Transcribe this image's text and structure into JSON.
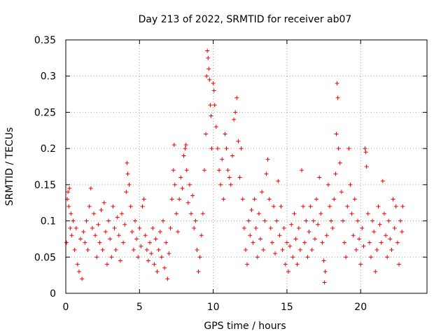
{
  "chart_data": {
    "type": "scatter",
    "title": "Day 213 of 2022, SRMTID for receiver ab07",
    "xlabel": "GPS time / hours",
    "ylabel": "SRMTID / TECUs",
    "xlim": [
      0,
      24.5
    ],
    "ylim": [
      0,
      0.35
    ],
    "xticks": [
      0,
      5,
      10,
      15,
      20
    ],
    "yticks": [
      0,
      0.05,
      0.1,
      0.15,
      0.2,
      0.25,
      0.3,
      0.35
    ],
    "xtick_labels": [
      "0",
      "5",
      "10",
      "15",
      "20"
    ],
    "ytick_labels": [
      "0",
      "0.05",
      "0.1",
      "0.15",
      "0.2",
      "0.25",
      "0.3",
      "0.35"
    ],
    "grid": true,
    "marker": "+",
    "color": "#ee0000",
    "series": [
      {
        "name": "SRMTID",
        "points": [
          [
            0.05,
            0.07
          ],
          [
            0.1,
            0.13
          ],
          [
            0.15,
            0.14
          ],
          [
            0.2,
            0.12
          ],
          [
            0.25,
            0.145
          ],
          [
            0.3,
            0.09
          ],
          [
            0.35,
            0.11
          ],
          [
            0.4,
            0.08
          ],
          [
            0.5,
            0.1
          ],
          [
            0.6,
            0.06
          ],
          [
            0.7,
            0.09
          ],
          [
            0.8,
            0.04
          ],
          [
            0.9,
            0.03
          ],
          [
            1.0,
            0.075
          ],
          [
            1.1,
            0.02
          ],
          [
            1.2,
            0.085
          ],
          [
            1.3,
            0.07
          ],
          [
            1.4,
            0.1
          ],
          [
            1.5,
            0.06
          ],
          [
            1.6,
            0.12
          ],
          [
            1.7,
            0.145
          ],
          [
            1.8,
            0.09
          ],
          [
            1.9,
            0.11
          ],
          [
            2.0,
            0.08
          ],
          [
            2.1,
            0.05
          ],
          [
            2.2,
            0.095
          ],
          [
            2.3,
            0.07
          ],
          [
            2.4,
            0.115
          ],
          [
            2.5,
            0.06
          ],
          [
            2.6,
            0.125
          ],
          [
            2.7,
            0.085
          ],
          [
            2.8,
            0.04
          ],
          [
            2.9,
            0.1
          ],
          [
            3.0,
            0.075
          ],
          [
            3.1,
            0.05
          ],
          [
            3.2,
            0.12
          ],
          [
            3.3,
            0.09
          ],
          [
            3.4,
            0.06
          ],
          [
            3.5,
            0.105
          ],
          [
            3.6,
            0.08
          ],
          [
            3.7,
            0.045
          ],
          [
            3.8,
            0.11
          ],
          [
            3.9,
            0.07
          ],
          [
            4.0,
            0.095
          ],
          [
            4.1,
            0.14
          ],
          [
            4.15,
            0.18
          ],
          [
            4.2,
            0.165
          ],
          [
            4.3,
            0.15
          ],
          [
            4.4,
            0.12
          ],
          [
            4.5,
            0.085
          ],
          [
            4.6,
            0.06
          ],
          [
            4.7,
            0.1
          ],
          [
            4.8,
            0.075
          ],
          [
            4.9,
            0.05
          ],
          [
            5.0,
            0.09
          ],
          [
            5.1,
            0.065
          ],
          [
            5.2,
            0.12
          ],
          [
            5.3,
            0.13
          ],
          [
            5.4,
            0.08
          ],
          [
            5.5,
            0.06
          ],
          [
            5.6,
            0.045
          ],
          [
            5.7,
            0.07
          ],
          [
            5.8,
            0.055
          ],
          [
            5.9,
            0.09
          ],
          [
            6.0,
            0.04
          ],
          [
            6.1,
            0.075
          ],
          [
            6.2,
            0.03
          ],
          [
            6.3,
            0.06
          ],
          [
            6.4,
            0.085
          ],
          [
            6.5,
            0.05
          ],
          [
            6.6,
            0.1
          ],
          [
            6.7,
            0.035
          ],
          [
            6.8,
            0.07
          ],
          [
            6.9,
            0.02
          ],
          [
            7.0,
            0.055
          ],
          [
            7.1,
            0.09
          ],
          [
            7.2,
            0.13
          ],
          [
            7.3,
            0.17
          ],
          [
            7.35,
            0.205
          ],
          [
            7.4,
            0.15
          ],
          [
            7.5,
            0.11
          ],
          [
            7.6,
            0.085
          ],
          [
            7.7,
            0.13
          ],
          [
            7.8,
            0.16
          ],
          [
            7.9,
            0.145
          ],
          [
            8.0,
            0.19
          ],
          [
            8.1,
            0.2
          ],
          [
            8.15,
            0.205
          ],
          [
            8.2,
            0.17
          ],
          [
            8.3,
            0.125
          ],
          [
            8.4,
            0.15
          ],
          [
            8.5,
            0.11
          ],
          [
            8.6,
            0.135
          ],
          [
            8.7,
            0.09
          ],
          [
            8.8,
            0.1
          ],
          [
            8.9,
            0.06
          ],
          [
            9.0,
            0.03
          ],
          [
            9.1,
            0.05
          ],
          [
            9.2,
            0.08
          ],
          [
            9.3,
            0.11
          ],
          [
            9.4,
            0.17
          ],
          [
            9.5,
            0.22
          ],
          [
            9.55,
            0.3
          ],
          [
            9.6,
            0.335
          ],
          [
            9.65,
            0.325
          ],
          [
            9.7,
            0.31
          ],
          [
            9.75,
            0.295
          ],
          [
            9.8,
            0.26
          ],
          [
            9.85,
            0.245
          ],
          [
            9.9,
            0.2
          ],
          [
            10.0,
            0.29
          ],
          [
            10.05,
            0.28
          ],
          [
            10.1,
            0.26
          ],
          [
            10.2,
            0.23
          ],
          [
            10.3,
            0.2
          ],
          [
            10.4,
            0.17
          ],
          [
            10.5,
            0.15
          ],
          [
            10.6,
            0.185
          ],
          [
            10.7,
            0.13
          ],
          [
            10.8,
            0.22
          ],
          [
            10.9,
            0.2
          ],
          [
            11.0,
            0.17
          ],
          [
            11.1,
            0.16
          ],
          [
            11.2,
            0.15
          ],
          [
            11.3,
            0.19
          ],
          [
            11.4,
            0.24
          ],
          [
            11.5,
            0.25
          ],
          [
            11.6,
            0.27
          ],
          [
            11.7,
            0.21
          ],
          [
            11.8,
            0.16
          ],
          [
            11.9,
            0.2
          ],
          [
            12.0,
            0.13
          ],
          [
            12.1,
            0.09
          ],
          [
            12.2,
            0.06
          ],
          [
            12.3,
            0.04
          ],
          [
            12.4,
            0.1
          ],
          [
            12.5,
            0.08
          ],
          [
            12.6,
            0.115
          ],
          [
            12.7,
            0.07
          ],
          [
            12.8,
            0.13
          ],
          [
            12.9,
            0.09
          ],
          [
            13.0,
            0.05
          ],
          [
            13.1,
            0.11
          ],
          [
            13.2,
            0.075
          ],
          [
            13.3,
            0.14
          ],
          [
            13.4,
            0.06
          ],
          [
            13.5,
            0.1
          ],
          [
            13.6,
            0.165
          ],
          [
            13.7,
            0.185
          ],
          [
            13.8,
            0.13
          ],
          [
            13.9,
            0.09
          ],
          [
            14.0,
            0.07
          ],
          [
            14.1,
            0.12
          ],
          [
            14.2,
            0.055
          ],
          [
            14.3,
            0.1
          ],
          [
            14.4,
            0.155
          ],
          [
            14.5,
            0.08
          ],
          [
            14.6,
            0.12
          ],
          [
            14.7,
            0.06
          ],
          [
            14.8,
            0.09
          ],
          [
            14.9,
            0.04
          ],
          [
            15.0,
            0.07
          ],
          [
            15.1,
            0.03
          ],
          [
            15.2,
            0.065
          ],
          [
            15.3,
            0.095
          ],
          [
            15.4,
            0.05
          ],
          [
            15.5,
            0.11
          ],
          [
            15.6,
            0.075
          ],
          [
            15.7,
            0.04
          ],
          [
            15.8,
            0.09
          ],
          [
            15.9,
            0.06
          ],
          [
            16.0,
            0.17
          ],
          [
            16.1,
            0.12
          ],
          [
            16.2,
            0.07
          ],
          [
            16.3,
            0.1
          ],
          [
            16.4,
            0.05
          ],
          [
            16.5,
            0.085
          ],
          [
            16.6,
            0.12
          ],
          [
            16.7,
            0.06
          ],
          [
            16.8,
            0.1
          ],
          [
            16.9,
            0.075
          ],
          [
            17.0,
            0.13
          ],
          [
            17.1,
            0.095
          ],
          [
            17.2,
            0.16
          ],
          [
            17.3,
            0.11
          ],
          [
            17.4,
            0.07
          ],
          [
            17.5,
            0.045
          ],
          [
            17.55,
            0.015
          ],
          [
            17.6,
            0.03
          ],
          [
            17.7,
            0.08
          ],
          [
            17.8,
            0.15
          ],
          [
            17.9,
            0.12
          ],
          [
            18.0,
            0.1
          ],
          [
            18.1,
            0.09
          ],
          [
            18.2,
            0.13
          ],
          [
            18.3,
            0.165
          ],
          [
            18.35,
            0.22
          ],
          [
            18.4,
            0.29
          ],
          [
            18.45,
            0.27
          ],
          [
            18.5,
            0.2
          ],
          [
            18.6,
            0.18
          ],
          [
            18.7,
            0.14
          ],
          [
            18.8,
            0.1
          ],
          [
            18.9,
            0.07
          ],
          [
            19.0,
            0.05
          ],
          [
            19.1,
            0.12
          ],
          [
            19.2,
            0.2
          ],
          [
            19.3,
            0.15
          ],
          [
            19.4,
            0.11
          ],
          [
            19.5,
            0.08
          ],
          [
            19.6,
            0.13
          ],
          [
            19.7,
            0.06
          ],
          [
            19.8,
            0.1
          ],
          [
            19.9,
            0.075
          ],
          [
            20.0,
            0.04
          ],
          [
            20.1,
            0.09
          ],
          [
            20.2,
            0.065
          ],
          [
            20.3,
            0.2
          ],
          [
            20.35,
            0.195
          ],
          [
            20.4,
            0.175
          ],
          [
            20.5,
            0.11
          ],
          [
            20.6,
            0.07
          ],
          [
            20.7,
            0.05
          ],
          [
            20.8,
            0.1
          ],
          [
            20.9,
            0.085
          ],
          [
            21.0,
            0.03
          ],
          [
            21.1,
            0.06
          ],
          [
            21.2,
            0.12
          ],
          [
            21.3,
            0.095
          ],
          [
            21.4,
            0.07
          ],
          [
            21.5,
            0.155
          ],
          [
            21.6,
            0.11
          ],
          [
            21.7,
            0.08
          ],
          [
            21.8,
            0.05
          ],
          [
            21.9,
            0.1
          ],
          [
            22.0,
            0.075
          ],
          [
            22.1,
            0.06
          ],
          [
            22.2,
            0.13
          ],
          [
            22.3,
            0.09
          ],
          [
            22.4,
            0.12
          ],
          [
            22.5,
            0.07
          ],
          [
            22.6,
            0.04
          ],
          [
            22.7,
            0.1
          ],
          [
            22.8,
            0.085
          ],
          [
            22.85,
            0.12
          ]
        ]
      }
    ]
  }
}
